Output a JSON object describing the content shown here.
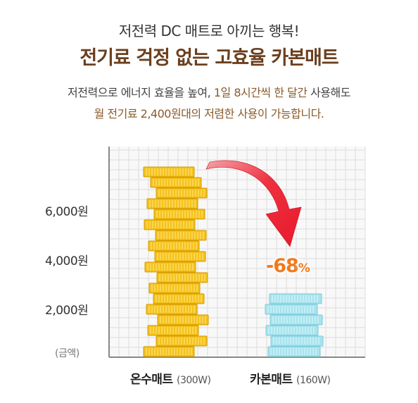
{
  "header": {
    "subtitle": "저전력 DC 매트로 아끼는 행복!",
    "title": "전기료 걱정 없는 고효율 카본매트",
    "desc_line1_a": "저전력으로 에너지 효율을 높여, ",
    "desc_line1_b": "1일 8시간씩 한 달간",
    "desc_line1_c": " 사용해도",
    "desc_line2": "월 전기료 2,400원대의 저렴한 사용이 가능합니다."
  },
  "chart_data": {
    "type": "bar",
    "categories": [
      "온수매트",
      "카본매트"
    ],
    "category_subs": [
      "(300W)",
      "(160W)"
    ],
    "values": [
      7500,
      2400
    ],
    "ylabel": "(금액)",
    "y_ticks": [
      2000,
      4000,
      6000
    ],
    "y_tick_labels": [
      "2,000원",
      "4,000원",
      "6,000원"
    ],
    "ylim": [
      0,
      9000
    ],
    "annotation": "-68",
    "annotation_unit": "%",
    "colors": {
      "bar1": "#f5c21b",
      "bar2": "#a8e3ee",
      "arrow": "#e8192c",
      "annotation": "#f07a1a",
      "grid": "#dddddd"
    }
  }
}
